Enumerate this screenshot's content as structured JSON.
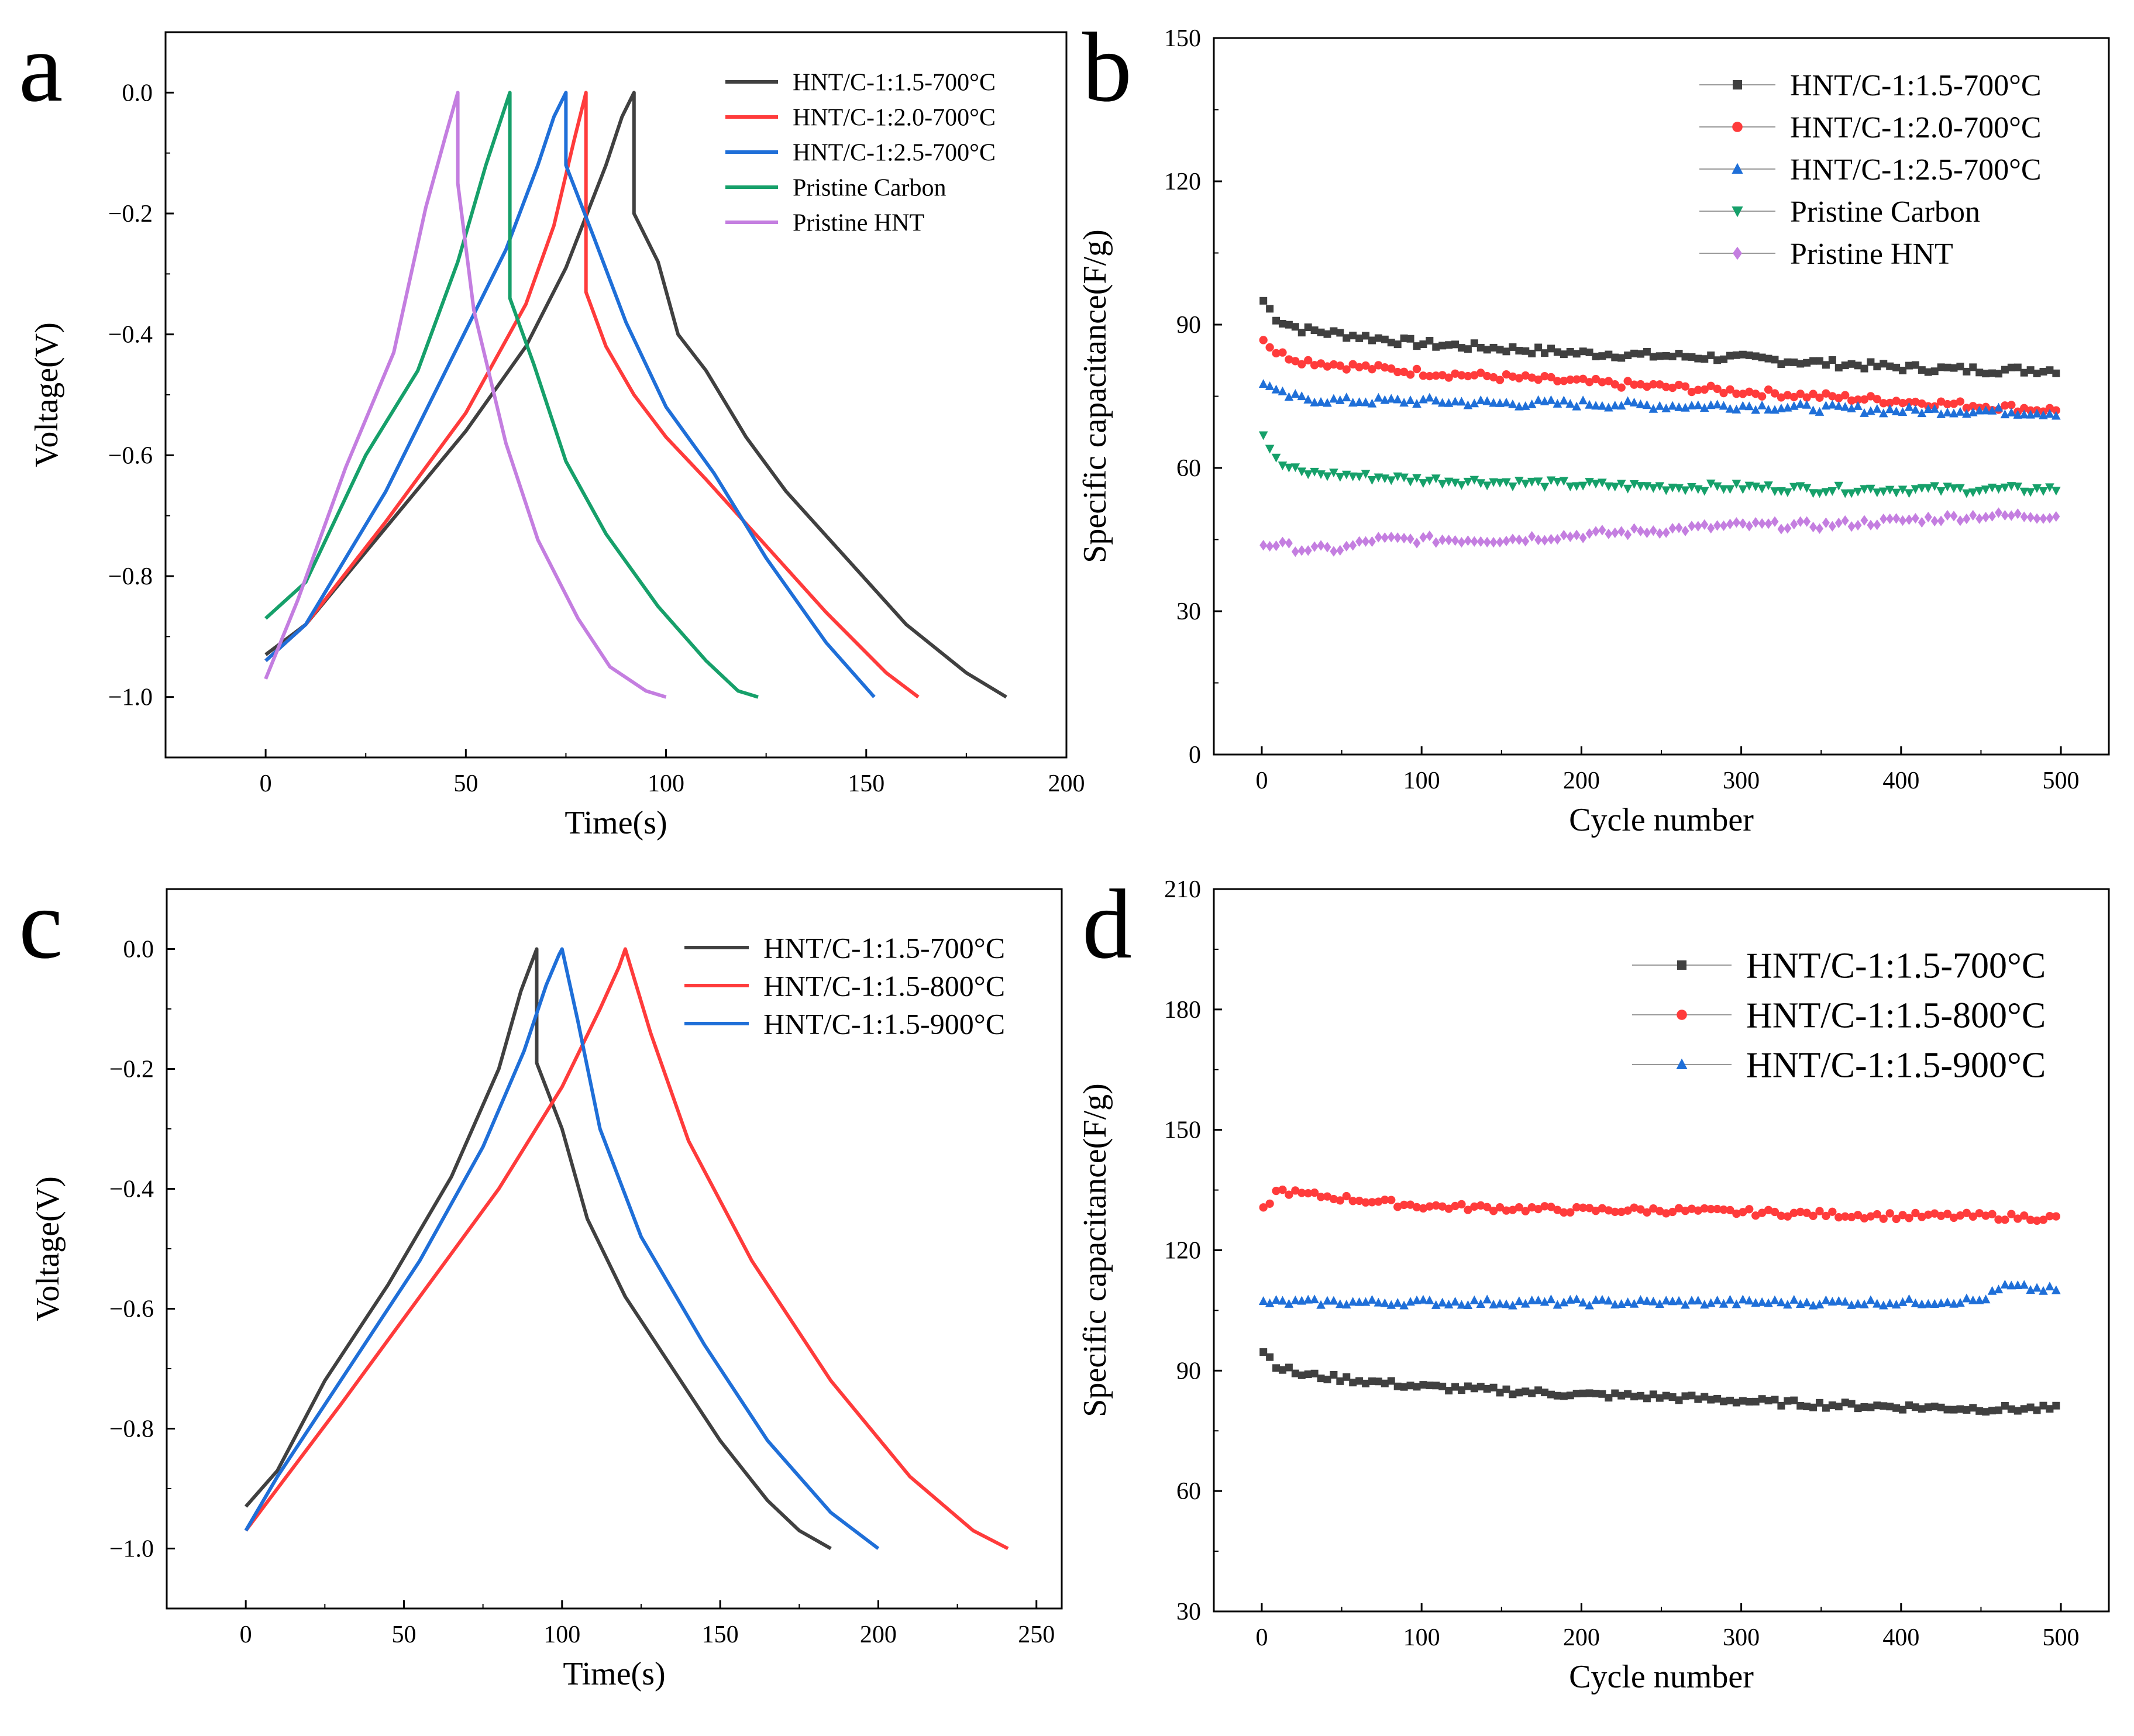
{
  "panels": [
    {
      "letter": "a",
      "name": "panel-a"
    },
    {
      "letter": "b",
      "name": "panel-b"
    },
    {
      "letter": "c",
      "name": "panel-c"
    },
    {
      "letter": "d",
      "name": "panel-d"
    }
  ],
  "colors": {
    "black": "#404040",
    "red": "#ff3b3b",
    "blue": "#1f6fd8",
    "green": "#16a06a",
    "purple": "#c47ee0"
  },
  "chart_data": [
    {
      "panel": "a",
      "type": "line",
      "title": "",
      "xlabel": "Time(s)",
      "ylabel": "Voltage(V)",
      "xlim": [
        -25,
        200
      ],
      "ylim": [
        -1.1,
        0.1
      ],
      "xticks": [
        0,
        50,
        100,
        150,
        200
      ],
      "yticks": [
        0.0,
        -0.2,
        -0.4,
        -0.6,
        -0.8,
        -1.0
      ],
      "ytick_labels": [
        "0.0",
        "−0.2",
        "−0.4",
        "−0.6",
        "−0.8",
        "−1.0"
      ],
      "legend_position": "top-right",
      "series": [
        {
          "name": "HNT/C-1:1.5-700°C",
          "color": "#404040",
          "x": [
            0,
            10,
            30,
            50,
            65,
            75,
            85,
            89,
            92,
            92,
            98,
            103,
            110,
            120,
            130,
            145,
            160,
            175,
            185
          ],
          "y": [
            -0.93,
            -0.88,
            -0.72,
            -0.56,
            -0.42,
            -0.29,
            -0.12,
            -0.04,
            0.0,
            -0.2,
            -0.28,
            -0.4,
            -0.46,
            -0.57,
            -0.66,
            -0.77,
            -0.88,
            -0.96,
            -1.0
          ]
        },
        {
          "name": "HNT/C-1:2.0-700°C",
          "color": "#ff3b3b",
          "x": [
            0,
            10,
            30,
            50,
            65,
            72,
            77,
            80,
            80,
            85,
            92,
            100,
            110,
            125,
            140,
            155,
            163
          ],
          "y": [
            -0.94,
            -0.88,
            -0.71,
            -0.53,
            -0.35,
            -0.22,
            -0.08,
            0.0,
            -0.33,
            -0.42,
            -0.5,
            -0.57,
            -0.64,
            -0.75,
            -0.86,
            -0.96,
            -1.0
          ]
        },
        {
          "name": "HNT/C-1:2.5-700°C",
          "color": "#1f6fd8",
          "x": [
            0,
            10,
            30,
            45,
            60,
            68,
            72,
            75,
            75,
            82,
            90,
            100,
            112,
            125,
            140,
            152
          ],
          "y": [
            -0.94,
            -0.88,
            -0.66,
            -0.46,
            -0.26,
            -0.12,
            -0.04,
            0.0,
            -0.12,
            -0.24,
            -0.38,
            -0.52,
            -0.63,
            -0.77,
            -0.91,
            -1.0
          ]
        },
        {
          "name": "Pristine Carbon",
          "color": "#16a06a",
          "x": [
            0,
            10,
            25,
            38,
            48,
            55,
            59,
            61,
            61,
            67,
            75,
            85,
            98,
            110,
            118,
            123
          ],
          "y": [
            -0.87,
            -0.81,
            -0.6,
            -0.46,
            -0.28,
            -0.12,
            -0.04,
            0.0,
            -0.34,
            -0.45,
            -0.61,
            -0.73,
            -0.85,
            -0.94,
            -0.99,
            -1.0
          ]
        },
        {
          "name": "Pristine  HNT",
          "color": "#c47ee0",
          "x": [
            0,
            8,
            20,
            32,
            40,
            45,
            48,
            48,
            52,
            60,
            68,
            78,
            86,
            95,
            100
          ],
          "y": [
            -0.97,
            -0.84,
            -0.62,
            -0.43,
            -0.19,
            -0.07,
            0.0,
            -0.15,
            -0.36,
            -0.58,
            -0.74,
            -0.87,
            -0.95,
            -0.99,
            -1.0
          ]
        }
      ]
    },
    {
      "panel": "b",
      "type": "scatter",
      "title": "",
      "xlabel": "Cycle number",
      "ylabel": "Specific capacitance(F/g)",
      "xlim": [
        -30,
        530
      ],
      "ylim": [
        0,
        150
      ],
      "xticks": [
        0,
        100,
        200,
        300,
        400,
        500
      ],
      "yticks": [
        0,
        30,
        60,
        90,
        120,
        150
      ],
      "legend_position": "top-right",
      "series": [
        {
          "name": "HNT/C-1:1.5-700°C",
          "color": "#404040",
          "marker": "square",
          "x": [
            1,
            10,
            25,
            50,
            100,
            150,
            200,
            250,
            300,
            350,
            400,
            450,
            500
          ],
          "y": [
            95,
            91,
            89,
            88,
            86,
            85,
            84,
            83.5,
            83,
            82,
            81,
            80.5,
            80.5
          ]
        },
        {
          "name": "HNT/C-1:2.0-700°C",
          "color": "#ff3b3b",
          "marker": "circle",
          "x": [
            1,
            10,
            25,
            50,
            100,
            150,
            200,
            250,
            300,
            350,
            400,
            450,
            500
          ],
          "y": [
            87,
            84,
            82.5,
            81.5,
            80,
            79,
            78,
            77,
            76,
            75,
            74,
            73,
            72
          ]
        },
        {
          "name": "HNT/C-1:2.5-700°C",
          "color": "#1f6fd8",
          "marker": "triangle-up",
          "x": [
            1,
            10,
            25,
            50,
            100,
            150,
            200,
            250,
            300,
            350,
            400,
            450,
            500
          ],
          "y": [
            78,
            75.5,
            74.5,
            74,
            74,
            73.5,
            73.5,
            73,
            73,
            72.5,
            72,
            72,
            71.5
          ]
        },
        {
          "name": "Pristine Carbon",
          "color": "#16a06a",
          "marker": "triangle-down",
          "x": [
            1,
            10,
            25,
            50,
            100,
            150,
            200,
            250,
            300,
            350,
            400,
            450,
            500
          ],
          "y": [
            67,
            61,
            59,
            58.5,
            57.5,
            57,
            56.5,
            56,
            56,
            55.5,
            55.5,
            55.5,
            55.5
          ]
        },
        {
          "name": "Pristine  HNT",
          "color": "#c47ee0",
          "marker": "diamond",
          "x": [
            1,
            10,
            25,
            50,
            70,
            100,
            150,
            200,
            250,
            300,
            350,
            400,
            450,
            500
          ],
          "y": [
            44,
            44,
            43,
            43,
            45,
            45,
            45,
            46,
            47,
            48,
            48,
            49,
            50,
            50
          ]
        }
      ]
    },
    {
      "panel": "c",
      "type": "line",
      "title": "",
      "xlabel": "Time(s)",
      "ylabel": "Voltage(V)",
      "xlim": [
        -25,
        258
      ],
      "ylim": [
        -1.1,
        0.1
      ],
      "xticks": [
        0,
        50,
        100,
        150,
        200,
        250
      ],
      "yticks": [
        0.0,
        -0.2,
        -0.4,
        -0.6,
        -0.8,
        -1.0
      ],
      "ytick_labels": [
        "0.0",
        "−0.2",
        "−0.4",
        "−0.6",
        "−0.8",
        "−1.0"
      ],
      "legend_position": "top-right",
      "series": [
        {
          "name": "HNT/C-1:1.5-700°C",
          "color": "#404040",
          "x": [
            0,
            10,
            25,
            45,
            65,
            80,
            87,
            92,
            92,
            100,
            108,
            120,
            135,
            150,
            165,
            175,
            185
          ],
          "y": [
            -0.93,
            -0.87,
            -0.72,
            -0.56,
            -0.38,
            -0.2,
            -0.07,
            0.0,
            -0.19,
            -0.3,
            -0.45,
            -0.58,
            -0.7,
            -0.82,
            -0.92,
            -0.97,
            -1.0
          ]
        },
        {
          "name": "HNT/C-1:1.5-800°C",
          "color": "#ff3b3b",
          "x": [
            0,
            10,
            30,
            55,
            80,
            100,
            112,
            118,
            120,
            128,
            140,
            160,
            185,
            210,
            230,
            241
          ],
          "y": [
            -0.97,
            -0.9,
            -0.76,
            -0.58,
            -0.4,
            -0.23,
            -0.1,
            -0.03,
            0.0,
            -0.14,
            -0.32,
            -0.52,
            -0.72,
            -0.88,
            -0.97,
            -1.0
          ]
        },
        {
          "name": "HNT/C-1:1.5-900°C",
          "color": "#1f6fd8",
          "x": [
            0,
            10,
            30,
            55,
            75,
            88,
            95,
            99,
            100,
            105,
            112,
            125,
            145,
            165,
            185,
            200
          ],
          "y": [
            -0.97,
            -0.88,
            -0.72,
            -0.52,
            -0.33,
            -0.17,
            -0.06,
            -0.01,
            0.0,
            -0.12,
            -0.3,
            -0.48,
            -0.66,
            -0.82,
            -0.94,
            -1.0
          ]
        }
      ]
    },
    {
      "panel": "d",
      "type": "scatter",
      "title": "",
      "xlabel": "Cycle number",
      "ylabel": "Specific capacitance(F/g)",
      "xlim": [
        -30,
        530
      ],
      "ylim": [
        30,
        210
      ],
      "xticks": [
        0,
        100,
        200,
        300,
        400,
        500
      ],
      "yticks": [
        30,
        60,
        90,
        120,
        150,
        180,
        210
      ],
      "legend_position": "top-right",
      "series": [
        {
          "name": "HNT/C-1:1.5-700°C",
          "color": "#404040",
          "marker": "square",
          "x": [
            1,
            10,
            25,
            50,
            100,
            150,
            200,
            250,
            300,
            350,
            400,
            450,
            500
          ],
          "y": [
            95,
            91,
            89,
            88,
            86,
            85,
            84,
            83.5,
            82.5,
            81.5,
            81,
            80.5,
            80.5
          ]
        },
        {
          "name": "HNT/C-1:1.5-800°C",
          "color": "#ff3b3b",
          "marker": "circle",
          "x": [
            1,
            10,
            25,
            50,
            100,
            150,
            200,
            250,
            300,
            350,
            400,
            450,
            500
          ],
          "y": [
            130,
            135,
            134,
            133,
            131,
            130.5,
            130,
            130,
            129.5,
            129,
            128.5,
            128.5,
            128
          ]
        },
        {
          "name": "HNT/C-1:1.5-900°C",
          "color": "#1f6fd8",
          "marker": "triangle-up",
          "x": [
            1,
            50,
            100,
            150,
            200,
            250,
            300,
            350,
            400,
            450,
            465,
            480,
            500
          ],
          "y": [
            107,
            107,
            107,
            107,
            107,
            107,
            107,
            107,
            107,
            107.5,
            111,
            110.5,
            110
          ]
        }
      ]
    }
  ]
}
